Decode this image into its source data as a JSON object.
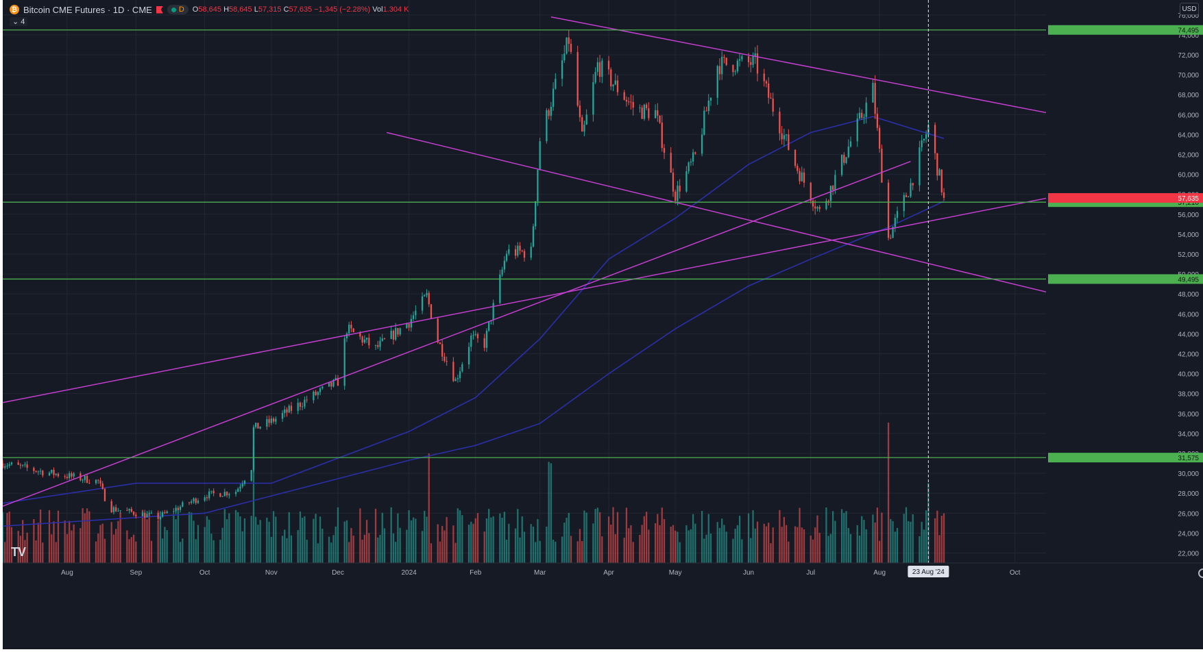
{
  "header": {
    "coin_icon": "bitcoin-icon",
    "coin_symbol": "₿",
    "title": "Bitcoin CME Futures · 1D · CME",
    "flag_icon": "flag-icon",
    "session_badge": "D",
    "ohlc": {
      "o_label": "O",
      "o": "58,645",
      "h_label": "H",
      "h": "58,645",
      "l_label": "L",
      "l": "57,315",
      "c_label": "C",
      "c": "57,635",
      "change": "−1,345 (−2.28%)",
      "vol_label": "Vol",
      "vol": "1.304 K"
    },
    "indicators_toggle": "⌄ 4",
    "currency": "USD"
  },
  "colors": {
    "background": "#161a25",
    "up": "#26a69a",
    "down": "#ef5350",
    "trendline": "#c43fd0",
    "ma": "#2b2fa8",
    "horizontal_level": "#4caf50"
  },
  "chart_data": {
    "type": "candlestick",
    "title": "Bitcoin CME Futures · 1D · CME",
    "x_start_date": "2023-07-03",
    "x_end_date": "2024-10-15",
    "x_tick_labels": [
      {
        "date": "2023-08-01",
        "label": "Aug"
      },
      {
        "date": "2023-09-01",
        "label": "Sep"
      },
      {
        "date": "2023-10-02",
        "label": "Oct"
      },
      {
        "date": "2023-11-01",
        "label": "Nov"
      },
      {
        "date": "2023-12-01",
        "label": "Dec"
      },
      {
        "date": "2024-01-02",
        "label": "2024"
      },
      {
        "date": "2024-02-01",
        "label": "Feb"
      },
      {
        "date": "2024-03-01",
        "label": "Mar"
      },
      {
        "date": "2024-04-01",
        "label": "Apr"
      },
      {
        "date": "2024-05-01",
        "label": "May"
      },
      {
        "date": "2024-06-03",
        "label": "Jun"
      },
      {
        "date": "2024-07-01",
        "label": "Jul"
      },
      {
        "date": "2024-08-01",
        "label": "Aug"
      },
      {
        "date": "2024-10-01",
        "label": "Oct"
      }
    ],
    "crosshair_date": "2024-08-23",
    "crosshair_label": "23 Aug '24",
    "y_range": [
      21000,
      77500
    ],
    "y_ticks": [
      22000,
      24000,
      26000,
      28000,
      30000,
      32000,
      34000,
      36000,
      38000,
      40000,
      42000,
      44000,
      46000,
      48000,
      50000,
      52000,
      54000,
      56000,
      58000,
      60000,
      62000,
      64000,
      66000,
      68000,
      70000,
      72000,
      74000,
      76000
    ],
    "y_tick_labels": [
      "22,000",
      "24,000",
      "26,000",
      "28,000",
      "30,000",
      "32,000",
      "34,000",
      "36,000",
      "38,000",
      "40,000",
      "42,000",
      "44,000",
      "46,000",
      "48,000",
      "50,000",
      "52,000",
      "54,000",
      "56,000",
      "58,000",
      "60,000",
      "62,000",
      "64,000",
      "66,000",
      "68,000",
      "70,000",
      "72,000",
      "74,000",
      "76,000"
    ],
    "price_anchors": [
      {
        "date": "2023-07-03",
        "price": 31000
      },
      {
        "date": "2023-07-20",
        "price": 30200
      },
      {
        "date": "2023-08-15",
        "price": 29200
      },
      {
        "date": "2023-08-20",
        "price": 26500
      },
      {
        "date": "2023-09-11",
        "price": 25600
      },
      {
        "date": "2023-10-02",
        "price": 27800
      },
      {
        "date": "2023-10-16",
        "price": 28200
      },
      {
        "date": "2023-10-23",
        "price": 30600
      },
      {
        "date": "2023-10-24",
        "price": 34500
      },
      {
        "date": "2023-11-01",
        "price": 35200
      },
      {
        "date": "2023-11-20",
        "price": 37800
      },
      {
        "date": "2023-12-01",
        "price": 39200
      },
      {
        "date": "2023-12-05",
        "price": 44500
      },
      {
        "date": "2023-12-18",
        "price": 42500
      },
      {
        "date": "2024-01-02",
        "price": 45200
      },
      {
        "date": "2024-01-10",
        "price": 47800
      },
      {
        "date": "2024-01-15",
        "price": 43300
      },
      {
        "date": "2024-01-23",
        "price": 39300
      },
      {
        "date": "2024-01-30",
        "price": 43600
      },
      {
        "date": "2024-02-05",
        "price": 43000
      },
      {
        "date": "2024-02-15",
        "price": 52200
      },
      {
        "date": "2024-02-26",
        "price": 52200
      },
      {
        "date": "2024-03-01",
        "price": 63500
      },
      {
        "date": "2024-03-14",
        "price": 73500
      },
      {
        "date": "2024-03-20",
        "price": 63500
      },
      {
        "date": "2024-03-27",
        "price": 71000
      },
      {
        "date": "2024-04-13",
        "price": 66500
      },
      {
        "date": "2024-04-22",
        "price": 66200
      },
      {
        "date": "2024-05-01",
        "price": 58000
      },
      {
        "date": "2024-05-10",
        "price": 61800
      },
      {
        "date": "2024-05-20",
        "price": 71000
      },
      {
        "date": "2024-06-06",
        "price": 71200
      },
      {
        "date": "2024-06-24",
        "price": 61000
      },
      {
        "date": "2024-07-05",
        "price": 56200
      },
      {
        "date": "2024-07-10",
        "price": 58600
      },
      {
        "date": "2024-07-29",
        "price": 68500
      },
      {
        "date": "2024-08-05",
        "price": 53600
      },
      {
        "date": "2024-08-15",
        "price": 59000
      },
      {
        "date": "2024-08-23",
        "price": 64800
      },
      {
        "date": "2024-08-30",
        "price": 57635
      }
    ],
    "volume_bars": 300,
    "volume_spikes": [
      {
        "date": "2023-10-24",
        "height": 0.82
      },
      {
        "date": "2024-01-11",
        "height": 0.78
      },
      {
        "date": "2024-03-05",
        "height": 0.72
      },
      {
        "date": "2024-03-06",
        "height": 0.71
      },
      {
        "date": "2024-08-05",
        "height": 1.0
      },
      {
        "date": "2024-08-23",
        "height": 0.57
      }
    ],
    "trendlines": [
      {
        "from": {
          "date": "2023-07-03",
          "price": 37100
        },
        "to": {
          "date": "2024-10-15",
          "price": 57600
        }
      },
      {
        "from": {
          "date": "2023-07-03",
          "price": 26700
        },
        "to": {
          "date": "2024-08-15",
          "price": 61300
        }
      },
      {
        "from": {
          "date": "2024-03-06",
          "price": 75800
        },
        "to": {
          "date": "2024-10-15",
          "price": 66200
        }
      },
      {
        "from": {
          "date": "2023-12-23",
          "price": 64200
        },
        "to": {
          "date": "2024-10-15",
          "price": 48200
        }
      }
    ],
    "moving_averages": [
      {
        "name": "MA fast",
        "points": [
          {
            "date": "2023-07-03",
            "price": 27000
          },
          {
            "date": "2023-09-01",
            "price": 29000
          },
          {
            "date": "2023-11-01",
            "price": 29000
          },
          {
            "date": "2024-01-02",
            "price": 34200
          },
          {
            "date": "2024-02-01",
            "price": 37600
          },
          {
            "date": "2024-03-01",
            "price": 43500
          },
          {
            "date": "2024-04-01",
            "price": 51500
          },
          {
            "date": "2024-05-01",
            "price": 55600
          },
          {
            "date": "2024-06-03",
            "price": 61000
          },
          {
            "date": "2024-07-01",
            "price": 64200
          },
          {
            "date": "2024-07-29",
            "price": 65800
          },
          {
            "date": "2024-08-30",
            "price": 63600
          }
        ]
      },
      {
        "name": "MA slow",
        "points": [
          {
            "date": "2023-07-03",
            "price": 24700
          },
          {
            "date": "2023-10-02",
            "price": 26000
          },
          {
            "date": "2024-01-02",
            "price": 31300
          },
          {
            "date": "2024-02-01",
            "price": 32800
          },
          {
            "date": "2024-03-01",
            "price": 35000
          },
          {
            "date": "2024-04-01",
            "price": 40000
          },
          {
            "date": "2024-05-01",
            "price": 44500
          },
          {
            "date": "2024-06-03",
            "price": 48800
          },
          {
            "date": "2024-07-01",
            "price": 51500
          },
          {
            "date": "2024-08-05",
            "price": 54700
          },
          {
            "date": "2024-08-30",
            "price": 57300
          }
        ]
      }
    ],
    "horizontal_levels": [
      {
        "price": 74495,
        "label": "74,495"
      },
      {
        "price": 57210,
        "label": "57,210"
      },
      {
        "price": 49495,
        "label": "49,495"
      },
      {
        "price": 31575,
        "label": "31,575"
      }
    ],
    "last_price": {
      "price": 57635,
      "label": "57,635"
    }
  }
}
